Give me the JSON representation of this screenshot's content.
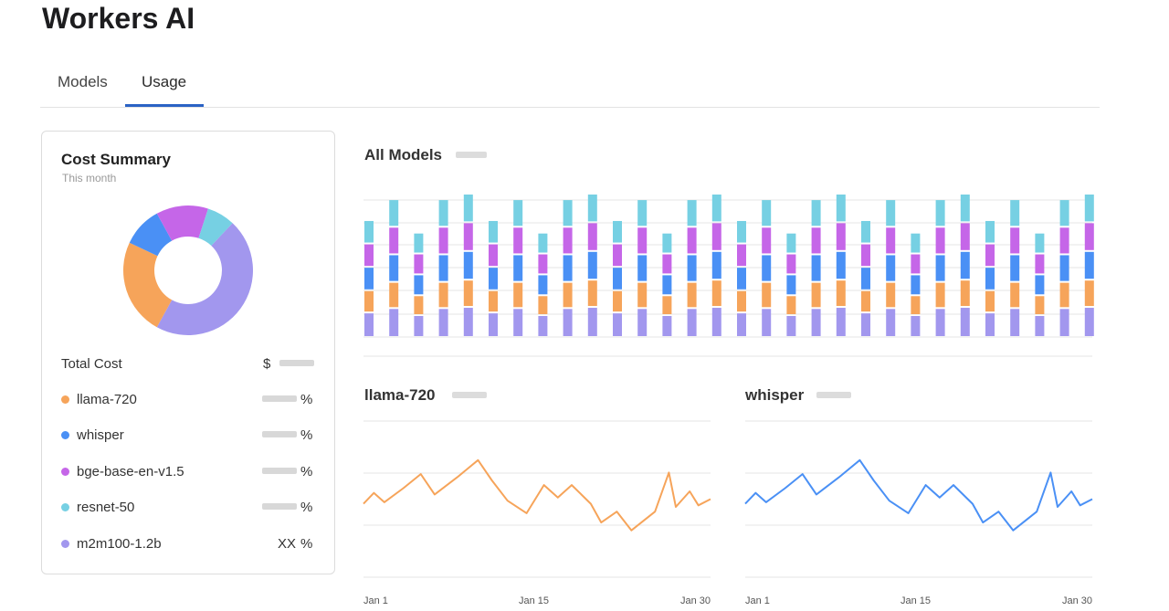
{
  "app": {
    "title": "Workers AI"
  },
  "tabs": [
    {
      "label": "Models",
      "active": false
    },
    {
      "label": "Usage",
      "active": true
    }
  ],
  "summary": {
    "title": "Cost Summary",
    "subtitle": "This month",
    "total_label": "Total Cost",
    "total_currency": "$",
    "models": [
      {
        "name": "llama-720",
        "color": "#f6a45a",
        "value": "",
        "unit": "%",
        "share": 0.24
      },
      {
        "name": "whisper",
        "color": "#4a90f5",
        "value": "",
        "unit": "%",
        "share": 0.1
      },
      {
        "name": "bge-base-en-v1.5",
        "color": "#c566e8",
        "value": "",
        "unit": "%",
        "share": 0.13
      },
      {
        "name": "resnet-50",
        "color": "#76d0e3",
        "value": "",
        "unit": "%",
        "share": 0.07
      },
      {
        "name": "m2m100-1.2b",
        "color": "#a297ee",
        "value": "XX",
        "unit": "%",
        "share": 0.46
      }
    ]
  },
  "chart_data": [
    {
      "type": "bar",
      "title": "All Models",
      "stacked": true,
      "series_order": [
        "m2m100-1.2b",
        "llama-720",
        "whisper",
        "bge-base-en-v1.5",
        "resnet-50"
      ],
      "colors": [
        "#a297ee",
        "#f6a45a",
        "#4a90f5",
        "#c566e8",
        "#76d0e3"
      ],
      "totals": [
        84,
        99,
        75,
        99,
        103,
        84,
        99,
        75,
        99,
        103,
        84,
        99,
        75,
        99,
        103,
        84,
        99,
        75,
        99,
        103,
        84,
        99,
        75,
        99,
        103,
        84,
        99,
        75,
        99,
        103
      ],
      "grid": true
    },
    {
      "type": "line",
      "title": "llama-720",
      "color": "#f6a45a",
      "x_ticks": [
        "Jan 1",
        "Jan 15",
        "Jan 30"
      ],
      "values": [
        47,
        54,
        48,
        57,
        66,
        53,
        64,
        75,
        62,
        49,
        41,
        59,
        51,
        59,
        47,
        35,
        42,
        30,
        42,
        67,
        45,
        55,
        46,
        50
      ],
      "ylim": [
        0,
        100
      ],
      "grid": true
    },
    {
      "type": "line",
      "title": "whisper",
      "color": "#4a90f5",
      "x_ticks": [
        "Jan 1",
        "Jan 15",
        "Jan 30"
      ],
      "values": [
        47,
        54,
        48,
        57,
        66,
        53,
        64,
        75,
        62,
        49,
        41,
        59,
        51,
        59,
        47,
        35,
        42,
        30,
        42,
        67,
        45,
        55,
        46,
        50
      ],
      "ylim": [
        0,
        100
      ],
      "grid": true
    }
  ]
}
